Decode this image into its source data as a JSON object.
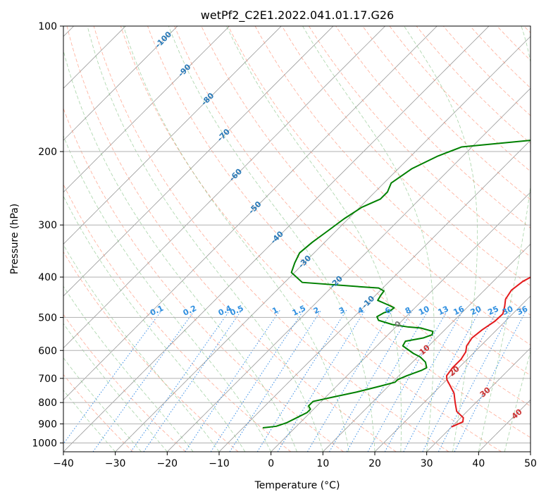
{
  "chart_data": {
    "type": "line",
    "title": "wetPf2_C2E1.2022.041.01.17.G26",
    "xlabel": "Temperature (°C)",
    "ylabel": "Pressure (hPa)",
    "xlim": [
      -40,
      50
    ],
    "ylim": [
      1050,
      100
    ],
    "x_ticks": [
      -40,
      -30,
      -20,
      -10,
      0,
      10,
      20,
      30,
      40,
      50
    ],
    "x_tick_labels": [
      "−40",
      "−30",
      "−20",
      "−10",
      "0",
      "10",
      "20",
      "30",
      "40",
      "50"
    ],
    "y_ticks": [
      100,
      200,
      300,
      400,
      500,
      600,
      700,
      800,
      900,
      1000
    ],
    "y_tick_labels": [
      "100",
      "200",
      "300",
      "400",
      "500",
      "600",
      "700",
      "800",
      "900",
      "1000"
    ],
    "colors": {
      "temperature": "#e31a1c",
      "dewpoint": "#008000",
      "isotherm": "#999999",
      "dry_adiabat": "#ff8060",
      "moist_adiabat": "#60b060",
      "mixing_ratio": "#3a8ee6",
      "isotherm_label": "#2a7ab8",
      "mixing_label": "#2f8fe0",
      "adiabat_label": "#cc3333"
    },
    "series": [
      {
        "name": "Temperature",
        "points": [
          [
            30,
            915
          ],
          [
            31.2,
            890
          ],
          [
            30.5,
            870
          ],
          [
            28,
            840
          ],
          [
            26,
            800
          ],
          [
            24,
            760
          ],
          [
            21.5,
            725
          ],
          [
            20,
            705
          ],
          [
            19.2,
            690
          ],
          [
            18.8,
            660
          ],
          [
            18.8,
            630
          ],
          [
            18.3,
            605
          ],
          [
            17.3,
            585
          ],
          [
            16.8,
            560
          ],
          [
            17.2,
            535
          ],
          [
            18.0,
            510
          ],
          [
            18.1,
            490
          ],
          [
            17.0,
            470
          ],
          [
            15.8,
            452
          ],
          [
            15.2,
            430
          ],
          [
            15.7,
            410
          ],
          [
            16.8,
            395
          ],
          [
            16.6,
            380
          ],
          [
            14.8,
            362
          ],
          [
            13.6,
            340
          ],
          [
            12.6,
            320
          ],
          [
            11.6,
            305
          ],
          [
            10.2,
            285
          ],
          [
            7.7,
            262
          ],
          [
            5.7,
            245
          ],
          [
            4.5,
            230
          ],
          [
            3.6,
            212
          ],
          [
            2.7,
            195
          ],
          [
            1.6,
            178
          ],
          [
            1.0,
            162
          ],
          [
            1.2,
            150
          ],
          [
            2.6,
            144
          ],
          [
            5.0,
            137
          ],
          [
            5.7,
            130
          ],
          [
            5.6,
            124
          ],
          [
            6.3,
            114
          ],
          [
            6.9,
            105
          ],
          [
            7.0,
            100
          ]
        ],
        "color": "temperature"
      },
      {
        "name": "Dewpoint",
        "points": [
          [
            -6.2,
            920
          ],
          [
            -3.9,
            912
          ],
          [
            -2.6,
            895
          ],
          [
            -1.6,
            870
          ],
          [
            -0.6,
            845
          ],
          [
            -0.6,
            830
          ],
          [
            -1.6,
            815
          ],
          [
            -1.6,
            795
          ],
          [
            1.6,
            775
          ],
          [
            5.0,
            755
          ],
          [
            8.5,
            730
          ],
          [
            10.5,
            715
          ],
          [
            10.5,
            705
          ],
          [
            11.5,
            690
          ],
          [
            13.3,
            670
          ],
          [
            13.8,
            660
          ],
          [
            12.5,
            640
          ],
          [
            10.5,
            622
          ],
          [
            8.5,
            610
          ],
          [
            5.0,
            585
          ],
          [
            4.6,
            570
          ],
          [
            7.4,
            560
          ],
          [
            8.5,
            550
          ],
          [
            8.0,
            540
          ],
          [
            5.0,
            530
          ],
          [
            2.4,
            527
          ],
          [
            -1.1,
            520
          ],
          [
            -4.6,
            508
          ],
          [
            -5.6,
            498
          ],
          [
            -5.0,
            487
          ],
          [
            -4.2,
            482
          ],
          [
            -4.0,
            474
          ],
          [
            -5.6,
            467
          ],
          [
            -8.6,
            455
          ],
          [
            -9.0,
            442
          ],
          [
            -9.2,
            432
          ],
          [
            -10.8,
            425
          ],
          [
            -14.6,
            422
          ],
          [
            -26.6,
            412
          ],
          [
            -30.6,
            390
          ],
          [
            -31.8,
            370
          ],
          [
            -32.8,
            350
          ],
          [
            -32.4,
            330
          ],
          [
            -31.6,
            310
          ],
          [
            -30.8,
            290
          ],
          [
            -29.6,
            272
          ],
          [
            -27.6,
            260
          ],
          [
            -27.6,
            250
          ],
          [
            -28.6,
            238
          ],
          [
            -27.4,
            220
          ],
          [
            -24.8,
            205
          ],
          [
            -22.0,
            195
          ],
          [
            -10.0,
            188
          ],
          [
            -6.0,
            180
          ],
          [
            -5.6,
            170
          ],
          [
            -6.2,
            160
          ],
          [
            -6.6,
            150
          ],
          [
            -8.0,
            140
          ],
          [
            -14.0,
            130
          ],
          [
            -18.0,
            127
          ],
          [
            -22.0,
            126
          ],
          [
            -22.6,
            124
          ],
          [
            -20.0,
            121
          ],
          [
            -14.0,
            117
          ],
          [
            -9.6,
            112
          ],
          [
            -7.6,
            108
          ],
          [
            -6.0,
            104
          ],
          [
            -3.0,
            100
          ]
        ],
        "color": "dewpoint"
      }
    ],
    "isotherm_labels": [
      {
        "t": -100,
        "text": "-100"
      },
      {
        "t": -90,
        "text": "-90"
      },
      {
        "t": -80,
        "text": "-80"
      },
      {
        "t": -70,
        "text": "-70"
      },
      {
        "t": -60,
        "text": "-60"
      },
      {
        "t": -50,
        "text": "-50"
      },
      {
        "t": -40,
        "text": "-40"
      },
      {
        "t": -30,
        "text": "-30"
      },
      {
        "t": -20,
        "text": "-20"
      },
      {
        "t": -10,
        "text": "-10"
      },
      {
        "t": 0,
        "text": "0"
      }
    ],
    "mixing_ratio_labels": [
      "0.1",
      "0.2",
      "0.4",
      "0.5",
      "1",
      "1.5",
      "2",
      "3",
      "4",
      "6",
      "8",
      "10",
      "13",
      "16",
      "20",
      "25",
      "30",
      "36"
    ],
    "dry_adiabat_labels": [
      "10",
      "20",
      "30",
      "40"
    ]
  }
}
